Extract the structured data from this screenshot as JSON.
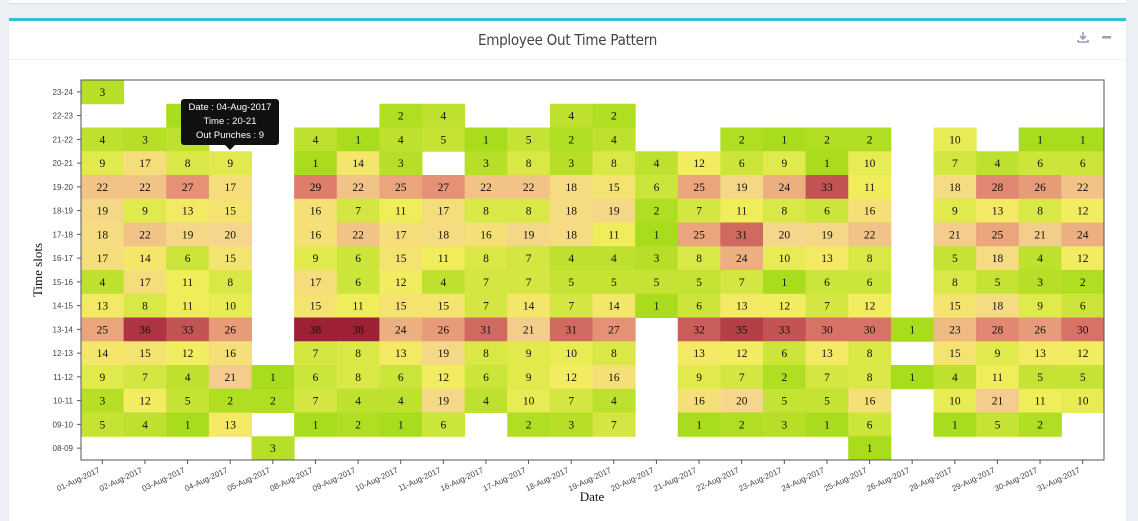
{
  "header": {
    "title": "Employee Out Time Pattern",
    "download_icon": "download-icon",
    "minimize_icon": "minus-icon"
  },
  "tooltip": {
    "date": "Date : 04-Aug-2017",
    "time": "Time : 20-21",
    "punches": "Out Punches : 9"
  },
  "chart_data": {
    "type": "heatmap",
    "xlabel": "Date",
    "ylabel": "Time slots",
    "x": [
      "01-Aug-2017",
      "02-Aug-2017",
      "03-Aug-2017",
      "04-Aug-2017",
      "05-Aug-2017",
      "08-Aug-2017",
      "09-Aug-2017",
      "10-Aug-2017",
      "11-Aug-2017",
      "16-Aug-2017",
      "17-Aug-2017",
      "18-Aug-2017",
      "19-Aug-2017",
      "20-Aug-2017",
      "21-Aug-2017",
      "22-Aug-2017",
      "23-Aug-2017",
      "24-Aug-2017",
      "25-Aug-2017",
      "26-Aug-2017",
      "28-Aug-2017",
      "29-Aug-2017",
      "30-Aug-2017",
      "31-Aug-2017"
    ],
    "y": [
      "23-24",
      "22-23",
      "21-22",
      "20-21",
      "19-20",
      "18-19",
      "17-18",
      "16-17",
      "15-16",
      "14-15",
      "13-14",
      "12-13",
      "11-12",
      "10-11",
      "09-10",
      "08-09"
    ],
    "values_orientation": "one array per date, values ordered as y",
    "values": [
      [
        3,
        null,
        4,
        9,
        22,
        19,
        18,
        17,
        4,
        13,
        25,
        14,
        9,
        3,
        5,
        null
      ],
      [
        null,
        null,
        3,
        17,
        22,
        9,
        22,
        14,
        17,
        8,
        36,
        15,
        7,
        12,
        4,
        null
      ],
      [
        null,
        1,
        4,
        8,
        27,
        13,
        19,
        6,
        11,
        11,
        33,
        12,
        4,
        5,
        1,
        null
      ],
      [
        null,
        null,
        null,
        9,
        17,
        15,
        20,
        15,
        8,
        10,
        26,
        16,
        21,
        2,
        13,
        null
      ],
      [
        null,
        null,
        null,
        null,
        null,
        null,
        null,
        null,
        null,
        null,
        null,
        null,
        1,
        2,
        null,
        3
      ],
      [
        null,
        null,
        4,
        1,
        29,
        16,
        16,
        9,
        17,
        15,
        38,
        7,
        6,
        7,
        1,
        null
      ],
      [
        null,
        null,
        1,
        14,
        22,
        7,
        22,
        6,
        6,
        11,
        38,
        8,
        8,
        4,
        2,
        null
      ],
      [
        null,
        2,
        4,
        3,
        25,
        11,
        17,
        15,
        12,
        15,
        24,
        13,
        6,
        4,
        1,
        null
      ],
      [
        null,
        4,
        5,
        null,
        27,
        17,
        18,
        11,
        4,
        15,
        26,
        19,
        12,
        19,
        6,
        null
      ],
      [
        null,
        null,
        1,
        3,
        22,
        8,
        16,
        8,
        7,
        7,
        31,
        8,
        6,
        4,
        null,
        null
      ],
      [
        null,
        null,
        5,
        8,
        22,
        8,
        19,
        7,
        7,
        14,
        21,
        9,
        9,
        10,
        2,
        null
      ],
      [
        null,
        4,
        2,
        3,
        18,
        18,
        18,
        4,
        5,
        7,
        31,
        10,
        12,
        7,
        3,
        null
      ],
      [
        null,
        2,
        4,
        8,
        15,
        19,
        11,
        4,
        5,
        14,
        27,
        8,
        16,
        4,
        7,
        null
      ],
      [
        null,
        null,
        null,
        4,
        6,
        2,
        1,
        3,
        5,
        1,
        null,
        null,
        null,
        null,
        null,
        null
      ],
      [
        null,
        null,
        null,
        12,
        25,
        7,
        25,
        8,
        5,
        6,
        32,
        13,
        9,
        16,
        1,
        null
      ],
      [
        null,
        null,
        2,
        6,
        19,
        11,
        31,
        24,
        7,
        13,
        35,
        12,
        7,
        20,
        2,
        null
      ],
      [
        null,
        null,
        1,
        9,
        24,
        8,
        20,
        10,
        1,
        12,
        33,
        6,
        2,
        5,
        3,
        null
      ],
      [
        null,
        null,
        2,
        1,
        33,
        6,
        19,
        13,
        6,
        7,
        30,
        13,
        7,
        5,
        1,
        null
      ],
      [
        null,
        null,
        2,
        10,
        11,
        16,
        22,
        8,
        6,
        12,
        30,
        8,
        8,
        16,
        6,
        1
      ],
      [
        null,
        null,
        null,
        null,
        null,
        null,
        null,
        null,
        null,
        null,
        1,
        null,
        1,
        null,
        null,
        null
      ],
      [
        null,
        null,
        10,
        7,
        18,
        9,
        21,
        5,
        8,
        15,
        23,
        15,
        4,
        10,
        1,
        null
      ],
      [
        null,
        null,
        null,
        4,
        28,
        13,
        25,
        18,
        5,
        18,
        28,
        9,
        11,
        21,
        5,
        null
      ],
      [
        null,
        null,
        1,
        6,
        26,
        8,
        21,
        4,
        3,
        9,
        26,
        13,
        5,
        11,
        2,
        null
      ],
      [
        null,
        null,
        1,
        6,
        22,
        12,
        24,
        12,
        2,
        6,
        30,
        12,
        5,
        10,
        null,
        null
      ]
    ],
    "color_scale": [
      "#a9dc1c",
      "#f2ee5c",
      "#f6d48e",
      "#e0806e",
      "#9e2034"
    ],
    "legend": "none"
  }
}
